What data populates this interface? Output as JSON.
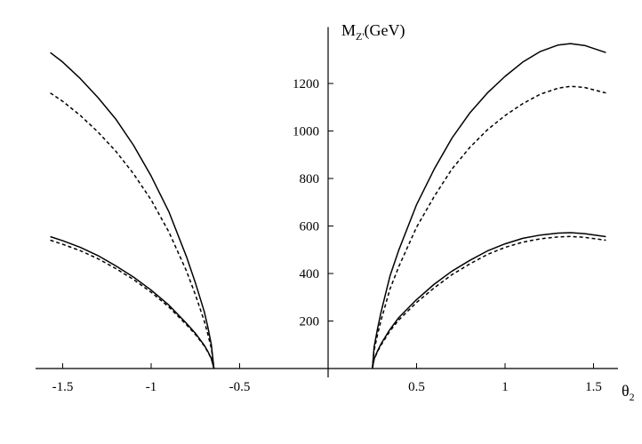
{
  "chart_data": {
    "type": "line",
    "title": "",
    "xlabel": "θ",
    "xlabel_sub": "2",
    "ylabel": "M",
    "ylabel_sub": "Z'",
    "ylabel_unit": "(GeV)",
    "xlim": [
      -1.6,
      1.65
    ],
    "ylim": [
      0,
      1400
    ],
    "x_ticks": [
      -1.5,
      -1,
      -0.5,
      0.5,
      1,
      1.5
    ],
    "x_tick_labels": [
      "-1.5",
      "-1",
      "-0.5",
      "0.5",
      "1",
      "1.5"
    ],
    "y_ticks": [
      200,
      400,
      600,
      800,
      1000,
      1200
    ],
    "y_tick_labels": [
      "200",
      "400",
      "600",
      "800",
      "1000",
      "1200"
    ],
    "grid": false,
    "legend": "none",
    "series": [
      {
        "style": "solid",
        "x": [
          -1.57,
          -1.5,
          -1.4,
          -1.3,
          -1.2,
          -1.1,
          -1.0,
          -0.9,
          -0.8,
          -0.75,
          -0.7,
          -0.68,
          -0.66,
          -0.645
        ],
        "y": [
          1330,
          1290,
          1220,
          1140,
          1050,
          940,
          810,
          660,
          470,
          360,
          240,
          175,
          100,
          0
        ]
      },
      {
        "style": "dashed",
        "x": [
          -1.57,
          -1.5,
          -1.4,
          -1.3,
          -1.2,
          -1.1,
          -1.0,
          -0.9,
          -0.8,
          -0.75,
          -0.7,
          -0.68,
          -0.66,
          -0.645
        ],
        "y": [
          1160,
          1125,
          1065,
          995,
          915,
          820,
          710,
          575,
          410,
          310,
          200,
          145,
          85,
          0
        ]
      },
      {
        "style": "solid",
        "x": [
          -1.57,
          -1.5,
          -1.4,
          -1.3,
          -1.2,
          -1.1,
          -1.0,
          -0.9,
          -0.8,
          -0.75,
          -0.7,
          -0.68,
          -0.66,
          -0.645
        ],
        "y": [
          555,
          538,
          510,
          475,
          432,
          385,
          330,
          267,
          190,
          148,
          98,
          72,
          42,
          0
        ]
      },
      {
        "style": "dashed",
        "x": [
          -1.57,
          -1.5,
          -1.4,
          -1.3,
          -1.2,
          -1.1,
          -1.0,
          -0.9,
          -0.8,
          -0.75,
          -0.7,
          -0.68,
          -0.66,
          -0.645
        ],
        "y": [
          540,
          523,
          496,
          462,
          421,
          375,
          321,
          259,
          184,
          143,
          95,
          70,
          41,
          0
        ]
      },
      {
        "style": "solid",
        "x": [
          0.25,
          0.26,
          0.28,
          0.3,
          0.35,
          0.4,
          0.5,
          0.6,
          0.7,
          0.8,
          0.9,
          1.0,
          1.1,
          1.2,
          1.3,
          1.37,
          1.45,
          1.57
        ],
        "y": [
          0,
          90,
          170,
          240,
          390,
          500,
          690,
          840,
          970,
          1075,
          1160,
          1230,
          1290,
          1335,
          1362,
          1368,
          1360,
          1330
        ]
      },
      {
        "style": "dashed",
        "x": [
          0.25,
          0.26,
          0.28,
          0.3,
          0.35,
          0.4,
          0.5,
          0.6,
          0.7,
          0.8,
          0.9,
          1.0,
          1.1,
          1.2,
          1.3,
          1.37,
          1.45,
          1.57
        ],
        "y": [
          0,
          75,
          145,
          205,
          335,
          430,
          595,
          725,
          840,
          930,
          1005,
          1065,
          1115,
          1155,
          1180,
          1188,
          1183,
          1160
        ]
      },
      {
        "style": "solid",
        "x": [
          0.25,
          0.26,
          0.28,
          0.3,
          0.35,
          0.4,
          0.5,
          0.6,
          0.7,
          0.8,
          0.9,
          1.0,
          1.1,
          1.2,
          1.3,
          1.37,
          1.45,
          1.57
        ],
        "y": [
          0,
          40,
          75,
          105,
          165,
          215,
          290,
          355,
          410,
          455,
          495,
          525,
          548,
          562,
          570,
          572,
          568,
          555
        ]
      },
      {
        "style": "dashed",
        "x": [
          0.25,
          0.26,
          0.28,
          0.3,
          0.35,
          0.4,
          0.5,
          0.6,
          0.7,
          0.8,
          0.9,
          1.0,
          1.1,
          1.2,
          1.3,
          1.37,
          1.45,
          1.57
        ],
        "y": [
          0,
          38,
          72,
          100,
          158,
          205,
          278,
          340,
          395,
          440,
          480,
          510,
          532,
          546,
          554,
          556,
          552,
          540
        ]
      }
    ]
  }
}
